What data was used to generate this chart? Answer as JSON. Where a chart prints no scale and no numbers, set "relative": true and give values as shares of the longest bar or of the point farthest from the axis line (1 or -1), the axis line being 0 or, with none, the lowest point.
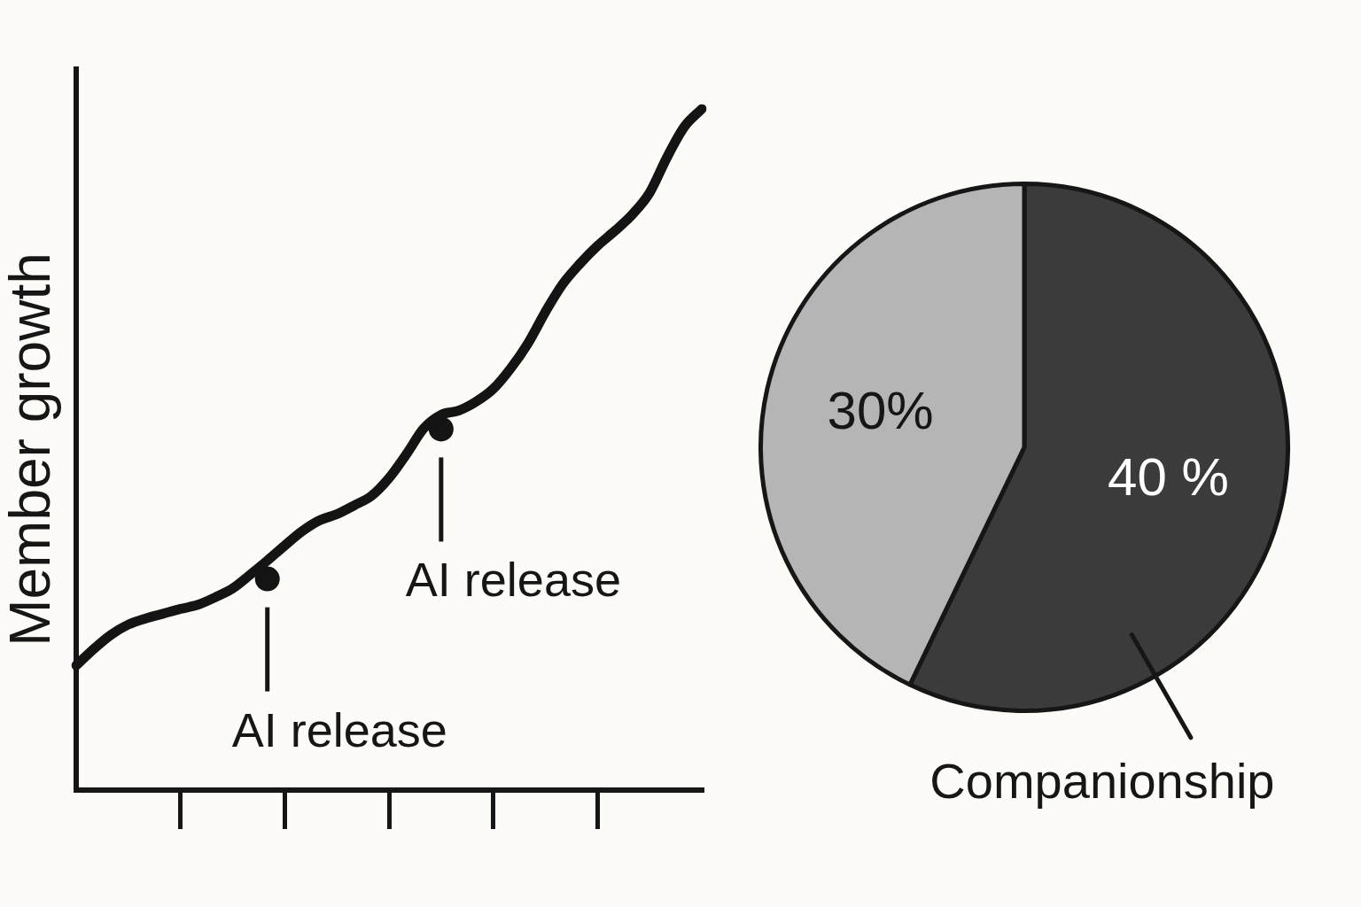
{
  "chart_data": [
    {
      "type": "line",
      "ylabel": "Member growth",
      "relative": true,
      "categories": [
        null,
        null,
        null,
        null,
        null,
        null,
        null,
        null,
        null,
        null,
        null,
        null,
        null,
        null,
        null,
        null,
        null,
        null,
        null,
        null,
        null,
        null,
        null,
        null,
        null,
        null,
        null,
        null,
        null,
        null,
        null,
        null,
        null,
        null,
        null,
        null,
        null
      ],
      "series": [
        {
          "color": "#141414",
          "values": [
            0.183,
            0.207,
            0.228,
            0.243,
            0.252,
            0.259,
            0.266,
            0.272,
            0.283,
            0.296,
            0.316,
            0.337,
            0.359,
            0.38,
            0.396,
            0.405,
            0.418,
            0.432,
            0.458,
            0.493,
            0.531,
            0.551,
            0.557,
            0.57,
            0.589,
            0.619,
            0.656,
            0.702,
            0.743,
            0.773,
            0.799,
            0.821,
            0.845,
            0.877,
            0.929,
            0.974,
            1
          ]
        },
        {
          "color": "#141414",
          "marker": "circle",
          "values": [
            null,
            null,
            null,
            null,
            null,
            null,
            null,
            null,
            null,
            null,
            null,
            0.31,
            null,
            null,
            null,
            null,
            null,
            null,
            null,
            null,
            null,
            0.53,
            null,
            null,
            null,
            null,
            null,
            null,
            null,
            null,
            null,
            null,
            null,
            null,
            null,
            null,
            null
          ]
        }
      ],
      "annotations": [
        "AI release",
        "AI release"
      ]
    },
    {
      "type": "pie",
      "categories": [
        "Companionship",
        null
      ],
      "values": [
        40,
        30
      ],
      "colors": [
        "#3b3b3b",
        "#b5b5b5"
      ],
      "value_labels": [
        "40 %",
        "30%"
      ]
    }
  ]
}
